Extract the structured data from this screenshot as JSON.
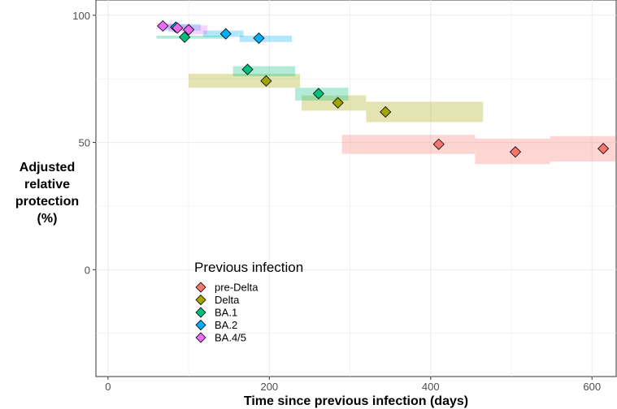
{
  "chart_data": {
    "type": "scatter",
    "title": "",
    "xlabel": "Time since previous infection (days)",
    "ylabel": [
      "Adjusted",
      "relative",
      "protection",
      "(%)"
    ],
    "xlim": [
      -15,
      630
    ],
    "ylim": [
      -42,
      106
    ],
    "x_ticks": [
      0,
      200,
      400,
      600
    ],
    "y_ticks": [
      0,
      50,
      100
    ],
    "grid": true,
    "legend": {
      "title": "Previous infection",
      "placement": "bottom-left-inside"
    },
    "series": [
      {
        "name": "pre-Delta",
        "color": "#F8766D",
        "points": [
          {
            "x": 410,
            "y": 49.3,
            "x_lo": 290,
            "x_hi": 455,
            "y_lo": 45.5,
            "y_hi": 53.0
          },
          {
            "x": 505,
            "y": 46.3,
            "x_lo": 455,
            "x_hi": 548,
            "y_lo": 41.5,
            "y_hi": 51.5
          },
          {
            "x": 614,
            "y": 47.6,
            "x_lo": 548,
            "x_hi": 630,
            "y_lo": 42.5,
            "y_hi": 52.5
          }
        ]
      },
      {
        "name": "Delta",
        "color": "#A3A500",
        "points": [
          {
            "x": 196,
            "y": 74.2,
            "x_lo": 100,
            "x_hi": 238,
            "y_lo": 71.5,
            "y_hi": 77.0
          },
          {
            "x": 285,
            "y": 65.6,
            "x_lo": 240,
            "x_hi": 320,
            "y_lo": 62.5,
            "y_hi": 68.5
          },
          {
            "x": 344,
            "y": 62.0,
            "x_lo": 320,
            "x_hi": 465,
            "y_lo": 58.0,
            "y_hi": 66.0
          }
        ]
      },
      {
        "name": "BA.1",
        "color": "#00BF7D",
        "points": [
          {
            "x": 95,
            "y": 91.4,
            "x_lo": 60,
            "x_hi": 148,
            "y_lo": 90.8,
            "y_hi": 92.0
          },
          {
            "x": 173,
            "y": 78.7,
            "x_lo": 155,
            "x_hi": 232,
            "y_lo": 76.0,
            "y_hi": 80.0
          },
          {
            "x": 261,
            "y": 69.2,
            "x_lo": 232,
            "x_hi": 298,
            "y_lo": 66.5,
            "y_hi": 71.5
          }
        ]
      },
      {
        "name": "BA.2",
        "color": "#00B0F6",
        "points": [
          {
            "x": 84,
            "y": 95.3,
            "x_lo": 68,
            "x_hi": 115,
            "y_lo": 94.0,
            "y_hi": 96.5
          },
          {
            "x": 146,
            "y": 92.7,
            "x_lo": 118,
            "x_hi": 168,
            "y_lo": 91.5,
            "y_hi": 94.0
          },
          {
            "x": 187,
            "y": 91.0,
            "x_lo": 163,
            "x_hi": 228,
            "y_lo": 89.5,
            "y_hi": 92.0
          }
        ]
      },
      {
        "name": "BA.4/5",
        "color": "#E76BF3",
        "points": [
          {
            "x": 68,
            "y": 95.8,
            "x_lo": 60,
            "x_hi": 80,
            "y_lo": 94.5,
            "y_hi": 97.0
          },
          {
            "x": 86,
            "y": 95.0,
            "x_lo": 75,
            "x_hi": 102,
            "y_lo": 93.5,
            "y_hi": 96.5
          },
          {
            "x": 100,
            "y": 94.3,
            "x_lo": 92,
            "x_hi": 123,
            "y_lo": 92.5,
            "y_hi": 96.0
          }
        ]
      }
    ]
  }
}
